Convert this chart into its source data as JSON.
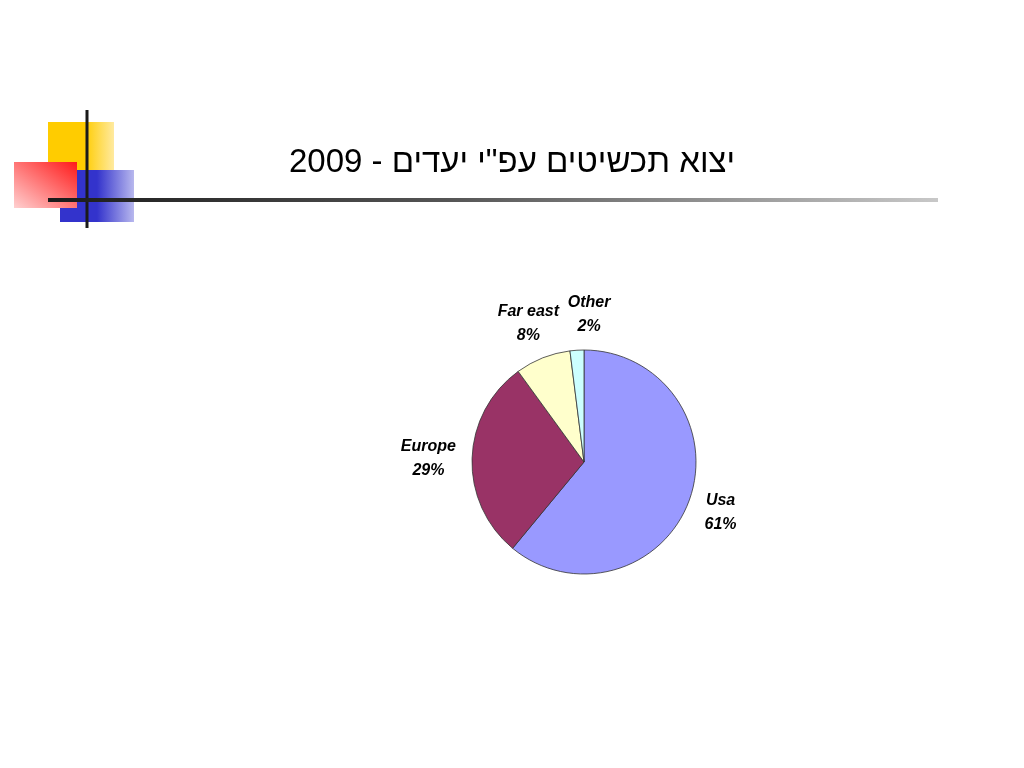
{
  "chart_data": {
    "type": "pie",
    "title": "יצוא תכשיטים עפ\"י יעדים - 2009",
    "categories": [
      "Usa",
      "Europe",
      "Far east",
      "Other"
    ],
    "values": [
      61,
      29,
      8,
      2
    ],
    "colors": [
      "#9999ff",
      "#993366",
      "#ffffcc",
      "#ccffff"
    ],
    "value_labels": [
      "61%",
      "29%",
      "8%",
      "2%"
    ]
  }
}
